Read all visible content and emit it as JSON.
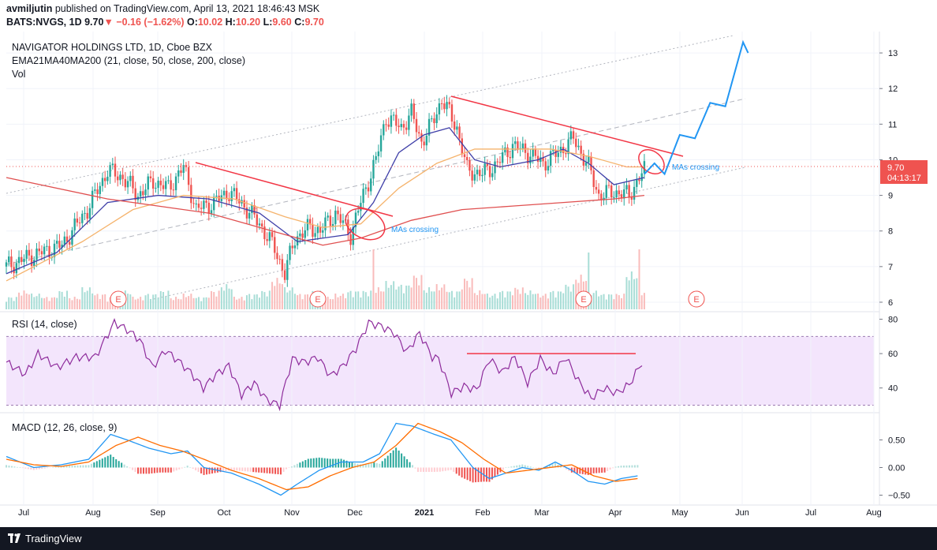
{
  "header": {
    "author": "avmiljutin",
    "published_text": "published on TradingView.com, April 13, 2021 18:46:43 MSK",
    "symbol": "BATS:NVGS, 1D",
    "last": "9.70",
    "arrow": "▼",
    "change": "−0.16 (−1.62%)",
    "o_label": "O:",
    "o_value": "10.02",
    "h_label": "H:",
    "h_value": "10.20",
    "l_label": "L:",
    "l_value": "9.60",
    "c_label": "C:",
    "c_value": "9.70"
  },
  "panes": {
    "price_title": "NAVIGATOR HOLDINGS LTD, 1D, Cboe BZX",
    "ma_legend": "EMA21MA40MA200 (21, close, 50, close, 200, close)",
    "vol_legend": "Vol",
    "rsi_legend": "RSI (14, close)",
    "macd_legend": "MACD (12, 26, close, 9)"
  },
  "footer": {
    "brand": "TradingView"
  },
  "colors": {
    "up": "#26a69a",
    "down": "#ef5350",
    "ema21": "#3f3fa8",
    "ma50": "#f5b36c",
    "ma200": "#e05050",
    "rsi": "#8e2c9c",
    "rsi_band": "#f1dcfb",
    "macd": "#2196f3",
    "signal": "#ff6d00",
    "annotation": "#2196f3",
    "trendline": "#f23645"
  },
  "chart_data": [
    {
      "type": "candlestick",
      "title": "NAVIGATOR HOLDINGS LTD, 1D, Cboe BZX",
      "x_ticks": [
        "Jul",
        "Aug",
        "Sep",
        "Oct",
        "Nov",
        "Dec",
        "2021",
        "Feb",
        "Mar",
        "Apr",
        "May",
        "Jun",
        "Jul",
        "Aug"
      ],
      "y_ticks": [
        6,
        7,
        8,
        9,
        10,
        11,
        12,
        13
      ],
      "ylim": [
        5.8,
        13.6
      ],
      "last_price_label": "9.70",
      "countdown_label": "04:13:17",
      "close_path": [
        [
          0,
          7.0
        ],
        [
          10,
          7.3
        ],
        [
          22,
          7.6
        ],
        [
          32,
          8.6
        ],
        [
          40,
          9.7
        ],
        [
          46,
          9.5
        ],
        [
          52,
          9.0
        ],
        [
          58,
          9.4
        ],
        [
          64,
          9.2
        ],
        [
          70,
          9.8
        ],
        [
          75,
          8.6
        ],
        [
          82,
          8.8
        ],
        [
          88,
          9.1
        ],
        [
          94,
          8.7
        ],
        [
          100,
          8.2
        ],
        [
          106,
          7.5
        ],
        [
          110,
          6.8
        ],
        [
          114,
          7.8
        ],
        [
          120,
          8.1
        ],
        [
          124,
          8.0
        ],
        [
          130,
          8.5
        ],
        [
          136,
          7.9
        ],
        [
          140,
          8.8
        ],
        [
          146,
          10.0
        ],
        [
          150,
          11.2
        ],
        [
          156,
          10.9
        ],
        [
          160,
          11.3
        ],
        [
          164,
          10.5
        ],
        [
          168,
          11.0
        ],
        [
          172,
          11.7
        ],
        [
          178,
          10.9
        ],
        [
          182,
          9.7
        ],
        [
          188,
          9.6
        ],
        [
          194,
          9.9
        ],
        [
          200,
          10.4
        ],
        [
          206,
          10.2
        ],
        [
          212,
          9.9
        ],
        [
          218,
          10.2
        ],
        [
          224,
          10.6
        ],
        [
          230,
          9.8
        ],
        [
          234,
          9.0
        ],
        [
          240,
          9.1
        ],
        [
          246,
          9.0
        ],
        [
          250,
          9.5
        ],
        [
          252,
          9.7
        ]
      ],
      "moving_averages": {
        "EMA21": [
          [
            0,
            6.8
          ],
          [
            20,
            7.4
          ],
          [
            40,
            8.8
          ],
          [
            60,
            9.0
          ],
          [
            80,
            8.9
          ],
          [
            100,
            8.5
          ],
          [
            115,
            7.7
          ],
          [
            125,
            7.8
          ],
          [
            135,
            7.9
          ],
          [
            145,
            8.8
          ],
          [
            155,
            10.2
          ],
          [
            165,
            10.7
          ],
          [
            175,
            10.9
          ],
          [
            185,
            10.0
          ],
          [
            195,
            9.8
          ],
          [
            210,
            10.0
          ],
          [
            220,
            10.3
          ],
          [
            230,
            9.9
          ],
          [
            240,
            9.3
          ],
          [
            252,
            9.5
          ]
        ],
        "MA50": [
          [
            0,
            6.6
          ],
          [
            30,
            7.7
          ],
          [
            50,
            8.6
          ],
          [
            70,
            9.0
          ],
          [
            90,
            8.9
          ],
          [
            110,
            8.4
          ],
          [
            125,
            8.1
          ],
          [
            140,
            8.2
          ],
          [
            155,
            9.2
          ],
          [
            170,
            9.9
          ],
          [
            185,
            10.3
          ],
          [
            200,
            10.3
          ],
          [
            215,
            10.3
          ],
          [
            230,
            10.1
          ],
          [
            245,
            9.8
          ],
          [
            252,
            9.8
          ]
        ],
        "MA200": [
          [
            0,
            9.5
          ],
          [
            40,
            8.9
          ],
          [
            80,
            8.5
          ],
          [
            110,
            7.9
          ],
          [
            125,
            7.6
          ],
          [
            140,
            7.8
          ],
          [
            160,
            8.3
          ],
          [
            180,
            8.6
          ],
          [
            200,
            8.7
          ],
          [
            220,
            8.8
          ],
          [
            240,
            8.9
          ],
          [
            252,
            9.0
          ]
        ]
      },
      "annotations": [
        "E",
        "E",
        "E",
        "E",
        "MAs crossing",
        "MAs crossing"
      ],
      "projection": [
        [
          252,
          9.6
        ],
        [
          256,
          9.9
        ],
        [
          260,
          9.6
        ],
        [
          266,
          10.7
        ],
        [
          272,
          10.6
        ],
        [
          278,
          11.6
        ],
        [
          284,
          11.5
        ],
        [
          291,
          13.3
        ],
        [
          293,
          13.0
        ]
      ]
    },
    {
      "type": "bar",
      "title": "Vol",
      "x_range": [
        0,
        252
      ],
      "values_relative": [
        0.2,
        0.3,
        0.25,
        0.2,
        0.3,
        0.2,
        0.35,
        0.25,
        0.2,
        0.3,
        0.2,
        0.25,
        0.3,
        0.2,
        0.25,
        0.2,
        0.3,
        0.4,
        0.2,
        0.25,
        0.3,
        0.5,
        0.35,
        0.25,
        0.3,
        0.2,
        0.25,
        0.3,
        0.3,
        0.35,
        0.45,
        0.4,
        0.55,
        0.35,
        0.4,
        0.3,
        0.5,
        0.3,
        0.25,
        0.3,
        0.35,
        0.3,
        0.25,
        0.3,
        0.4,
        0.55,
        0.3,
        0.25,
        0.25,
        0.6,
        0.3
      ],
      "value_up": [
        1,
        0,
        1,
        0,
        1,
        0,
        1,
        0,
        0,
        1,
        0,
        1,
        1,
        0,
        0,
        1,
        0,
        1,
        0,
        1,
        1,
        0,
        1,
        0,
        1,
        0,
        0,
        1,
        1,
        0,
        1,
        1,
        0,
        1,
        0,
        1,
        0,
        0,
        1,
        1,
        0,
        1,
        0,
        1,
        1,
        0,
        1,
        1,
        0,
        1,
        0
      ]
    },
    {
      "type": "line",
      "title": "RSI (14, close)",
      "y_ticks": [
        40,
        60,
        80
      ],
      "ylim": [
        27,
        83
      ],
      "band": [
        30,
        70
      ],
      "values": [
        [
          0,
          55
        ],
        [
          6,
          48
        ],
        [
          10,
          60
        ],
        [
          16,
          52
        ],
        [
          22,
          58
        ],
        [
          28,
          58
        ],
        [
          34,
          78
        ],
        [
          38,
          74
        ],
        [
          42,
          68
        ],
        [
          46,
          52
        ],
        [
          50,
          62
        ],
        [
          54,
          56
        ],
        [
          58,
          49
        ],
        [
          62,
          40
        ],
        [
          66,
          48
        ],
        [
          70,
          53
        ],
        [
          74,
          36
        ],
        [
          78,
          43
        ],
        [
          82,
          33
        ],
        [
          86,
          30
        ],
        [
          90,
          57
        ],
        [
          94,
          55
        ],
        [
          98,
          58
        ],
        [
          102,
          47
        ],
        [
          106,
          53
        ],
        [
          110,
          63
        ],
        [
          114,
          78
        ],
        [
          118,
          76
        ],
        [
          122,
          72
        ],
        [
          126,
          61
        ],
        [
          130,
          72
        ],
        [
          134,
          58
        ],
        [
          136,
          57
        ],
        [
          140,
          37
        ],
        [
          144,
          41
        ],
        [
          148,
          39
        ],
        [
          152,
          57
        ],
        [
          156,
          49
        ],
        [
          160,
          58
        ],
        [
          164,
          43
        ],
        [
          168,
          57
        ],
        [
          172,
          48
        ],
        [
          176,
          58
        ],
        [
          180,
          44
        ],
        [
          184,
          34
        ],
        [
          188,
          40
        ],
        [
          192,
          37
        ],
        [
          196,
          42
        ],
        [
          200,
          55
        ]
      ],
      "resistance_level": 60
    },
    {
      "type": "line",
      "title": "MACD (12, 26, close, 9)",
      "y_ticks": [
        -0.5,
        0.0,
        0.5
      ],
      "ylim": [
        -0.65,
        0.95
      ],
      "series": [
        {
          "name": "MACD",
          "values": [
            [
              0,
              0.2
            ],
            [
              10,
              0.0
            ],
            [
              20,
              0.05
            ],
            [
              30,
              0.15
            ],
            [
              38,
              0.6
            ],
            [
              44,
              0.5
            ],
            [
              52,
              0.35
            ],
            [
              60,
              0.25
            ],
            [
              66,
              0.3
            ],
            [
              72,
              0.0
            ],
            [
              82,
              -0.1
            ],
            [
              92,
              -0.3
            ],
            [
              100,
              -0.5
            ],
            [
              106,
              -0.3
            ],
            [
              114,
              -0.05
            ],
            [
              122,
              0.1
            ],
            [
              130,
              0.1
            ],
            [
              136,
              0.25
            ],
            [
              142,
              0.8
            ],
            [
              148,
              0.75
            ],
            [
              156,
              0.6
            ],
            [
              162,
              0.5
            ],
            [
              170,
              0.0
            ],
            [
              176,
              -0.2
            ],
            [
              182,
              -0.1
            ],
            [
              188,
              0.0
            ],
            [
              194,
              -0.05
            ],
            [
              200,
              0.1
            ],
            [
              206,
              -0.05
            ],
            [
              212,
              -0.25
            ],
            [
              218,
              -0.3
            ],
            [
              224,
              -0.2
            ],
            [
              230,
              -0.15
            ]
          ]
        },
        {
          "name": "Signal",
          "values": [
            [
              0,
              0.15
            ],
            [
              10,
              0.05
            ],
            [
              20,
              0.02
            ],
            [
              30,
              0.1
            ],
            [
              40,
              0.4
            ],
            [
              48,
              0.55
            ],
            [
              56,
              0.4
            ],
            [
              64,
              0.3
            ],
            [
              72,
              0.15
            ],
            [
              82,
              -0.05
            ],
            [
              92,
              -0.2
            ],
            [
              102,
              -0.4
            ],
            [
              110,
              -0.35
            ],
            [
              118,
              -0.15
            ],
            [
              126,
              0.0
            ],
            [
              134,
              0.1
            ],
            [
              142,
              0.4
            ],
            [
              150,
              0.8
            ],
            [
              158,
              0.65
            ],
            [
              166,
              0.45
            ],
            [
              174,
              0.15
            ],
            [
              182,
              -0.1
            ],
            [
              190,
              -0.05
            ],
            [
              198,
              0.0
            ],
            [
              206,
              0.05
            ],
            [
              214,
              -0.15
            ],
            [
              222,
              -0.25
            ],
            [
              230,
              -0.2
            ]
          ]
        }
      ]
    }
  ]
}
